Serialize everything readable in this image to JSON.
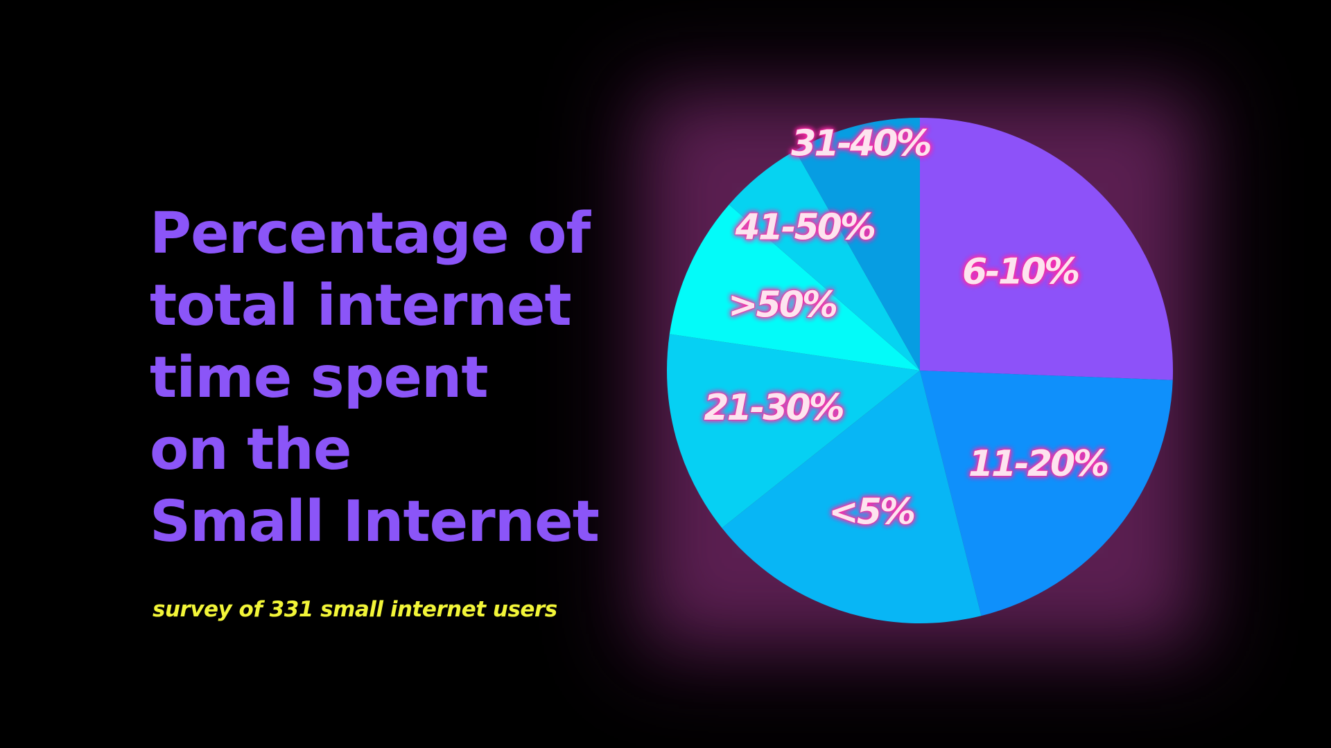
{
  "title_lines": [
    "Percentage of",
    "total internet",
    "time spent",
    "on the",
    "Small Internet"
  ],
  "subtitle": "survey of 331 small internet users",
  "chart_data": {
    "type": "pie",
    "title": "Percentage of total internet time spent on the Small Internet",
    "subtitle": "survey of 331 small internet users",
    "slices": [
      {
        "label": "6-10%",
        "value": 25.6,
        "color": "#8d52f9"
      },
      {
        "label": "11-20%",
        "value": 20.5,
        "color": "#0f90fb"
      },
      {
        "label": "<5%",
        "value": 18.2,
        "color": "#08b6f5"
      },
      {
        "label": "21-30%",
        "value": 13.0,
        "color": "#06d0f3"
      },
      {
        "label": ">50%",
        "value": 9.1,
        "color": "#03fbf9"
      },
      {
        "label": "41-50%",
        "value": 5.4,
        "color": "#06d3f1"
      },
      {
        "label": "31-40%",
        "value": 8.2,
        "color": "#079de2"
      }
    ],
    "start": "12 o'clock",
    "direction": "clockwise",
    "legend": "none",
    "labels": "inside slices"
  }
}
